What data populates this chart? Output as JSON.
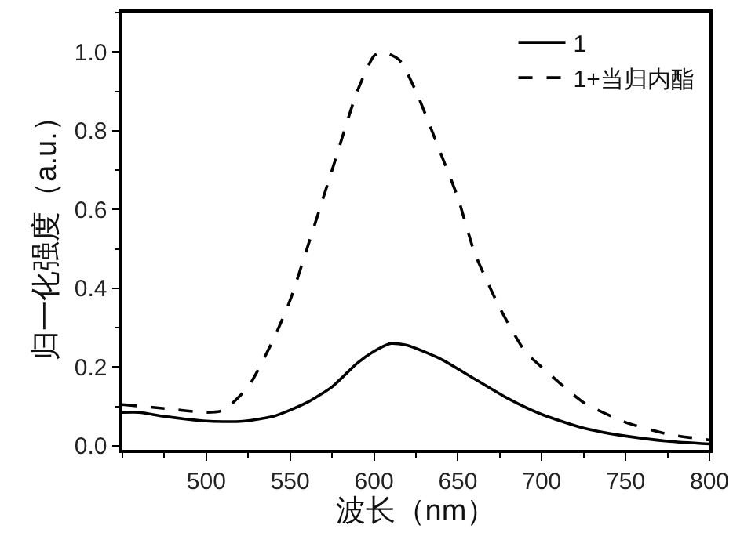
{
  "chart_data": {
    "type": "line",
    "xlabel": "波长（nm）",
    "ylabel": "归一化强度（a.u.）",
    "xlim": [
      450,
      800
    ],
    "xticks": [
      500,
      550,
      600,
      650,
      700,
      750,
      800
    ],
    "ylim": [
      -0.01,
      1.1
    ],
    "yticks": [
      {
        "value": 0,
        "label": "0.0"
      },
      0.2,
      0.4,
      0.6,
      0.8,
      {
        "value": 1,
        "label": "1.0"
      }
    ],
    "grid": false,
    "legend": "top right",
    "marker": "none",
    "series": [
      {
        "name": "1",
        "color": "#000000",
        "line_style": "solid",
        "x": [
          450,
          460,
          475,
          500,
          520,
          540,
          560,
          575,
          590,
          600,
          610,
          620,
          640,
          660,
          680,
          700,
          725,
          750,
          775,
          800
        ],
        "values": [
          0.085,
          0.085,
          0.075,
          0.063,
          0.062,
          0.075,
          0.11,
          0.15,
          0.21,
          0.24,
          0.26,
          0.255,
          0.22,
          0.17,
          0.12,
          0.08,
          0.045,
          0.025,
          0.012,
          0.005
        ]
      },
      {
        "name": "1+当归内酯",
        "color": "#000000",
        "line_style": "dashed",
        "x": [
          450,
          475,
          500,
          510,
          525,
          540,
          550,
          560,
          575,
          590,
          600,
          605,
          615,
          625,
          640,
          650,
          660,
          675,
          690,
          700,
          725,
          750,
          775,
          800
        ],
        "values": [
          0.105,
          0.095,
          0.085,
          0.09,
          0.15,
          0.27,
          0.37,
          0.5,
          0.7,
          0.9,
          0.99,
          1.0,
          0.98,
          0.9,
          0.74,
          0.63,
          0.49,
          0.35,
          0.24,
          0.2,
          0.11,
          0.06,
          0.03,
          0.015
        ]
      }
    ]
  }
}
